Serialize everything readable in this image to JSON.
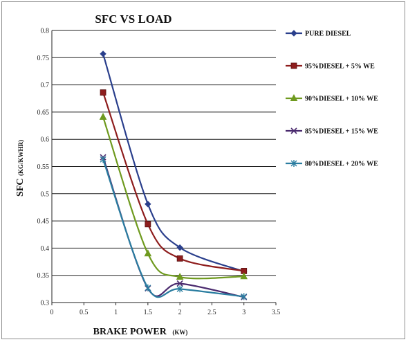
{
  "chart_data": {
    "type": "line",
    "title": "SFC VS LOAD",
    "xlabel": "BRAKE POWER",
    "xlabel_unit": "(KW)",
    "ylabel": "SFC",
    "ylabel_unit": "(KG/KWHR)",
    "xlim": [
      0,
      3.5
    ],
    "ylim": [
      0.3,
      0.8
    ],
    "x_ticks": [
      "0",
      "0.5",
      "1",
      "1.5",
      "2",
      "2.5",
      "3",
      "3.5"
    ],
    "y_ticks": [
      "0.3",
      "0.35",
      "0.4",
      "0.45",
      "0.5",
      "0.55",
      "0.6",
      "0.65",
      "0.7",
      "0.75",
      "0.8"
    ],
    "grid": "horizontal",
    "legend_position": "right",
    "x": [
      0.8,
      1.5,
      2,
      3
    ],
    "series": [
      {
        "name": "PURE DIESEL",
        "values": [
          0.757,
          0.481,
          0.401,
          0.357
        ],
        "color": "#2a3f8c",
        "marker": "diamond"
      },
      {
        "name": "95%DIESEL + 5% WE",
        "values": [
          0.686,
          0.444,
          0.381,
          0.358
        ],
        "color": "#8e1d1d",
        "marker": "square"
      },
      {
        "name": "90%DIESEL + 10% WE",
        "values": [
          0.641,
          0.39,
          0.347,
          0.348
        ],
        "color": "#6f9a1f",
        "marker": "triangle"
      },
      {
        "name": "85%DIESEL + 15% WE",
        "values": [
          0.567,
          0.326,
          0.335,
          0.31
        ],
        "color": "#4a2a6e",
        "marker": "x"
      },
      {
        "name": "80%DIESEL + 20% WE",
        "values": [
          0.563,
          0.327,
          0.325,
          0.311
        ],
        "color": "#2a7da0",
        "marker": "star"
      }
    ]
  }
}
